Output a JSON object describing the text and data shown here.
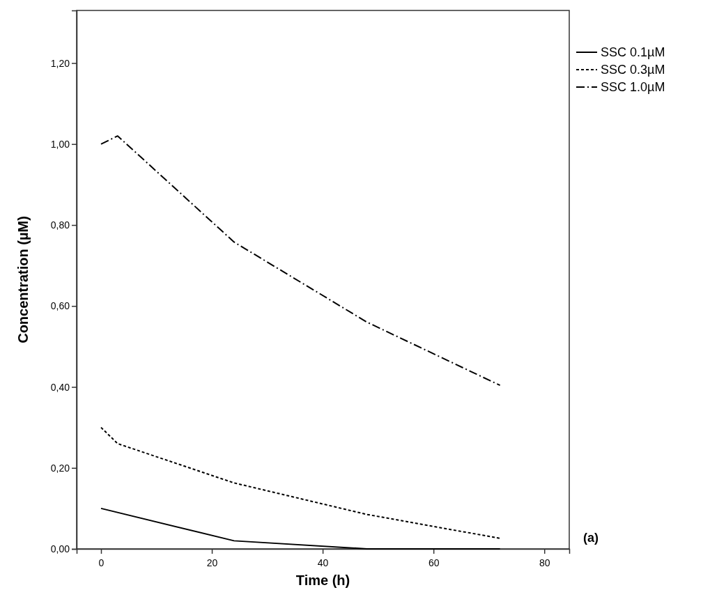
{
  "chart_data": {
    "type": "line",
    "xlabel": "Time (h)",
    "ylabel": "Concentration (µM)",
    "xlim": [
      -4.4,
      84.5
    ],
    "ylim": [
      0,
      1.33
    ],
    "xticks": [
      0,
      20,
      40,
      60,
      80
    ],
    "yticks": [
      {
        "value": 0,
        "label": "0,00"
      },
      {
        "value": 0.2,
        "label": "0,20"
      },
      {
        "value": 0.4,
        "label": "0,40"
      },
      {
        "value": 0.6,
        "label": "0,60"
      },
      {
        "value": 0.8,
        "label": "0,80"
      },
      {
        "value": 1.0,
        "label": "1,00"
      },
      {
        "value": 1.2,
        "label": "1,20"
      }
    ],
    "grid": false,
    "legend": "top right",
    "marker": "none",
    "annotations": [
      "(a)"
    ],
    "series": [
      {
        "name": "SSC 0.1µM",
        "color": "#000000",
        "line_style": "solid",
        "x": [
          0,
          24,
          48,
          72
        ],
        "values": [
          0.1,
          0.02,
          0,
          0
        ]
      },
      {
        "name": "SSC 0.3µM",
        "color": "#000000",
        "line_style": "dotted",
        "x": [
          0,
          3,
          24,
          48,
          72
        ],
        "values": [
          0.3,
          0.26,
          0.163,
          0.085,
          0.026
        ]
      },
      {
        "name": "SSC 1.0µM",
        "color": "#000000",
        "line_style": "dashdot",
        "x": [
          0,
          3,
          24,
          48,
          72
        ],
        "values": [
          1.0,
          1.02,
          0.758,
          0.56,
          0.404
        ]
      }
    ]
  }
}
